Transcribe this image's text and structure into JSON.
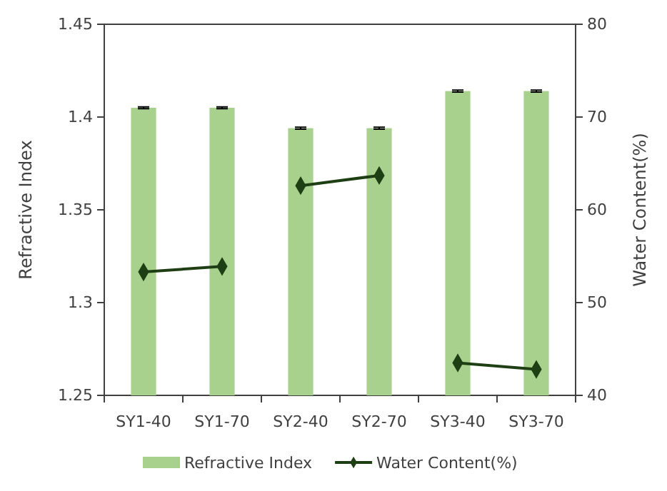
{
  "chart_data": {
    "type": "bar",
    "categories": [
      "SY1-40",
      "SY1-70",
      "SY2-40",
      "SY2-70",
      "SY3-40",
      "SY3-70"
    ],
    "ylabel": "Refractive Index",
    "y2label": "Water Content(%)",
    "ylim": [
      1.25,
      1.45
    ],
    "yticks": [
      1.25,
      1.3,
      1.35,
      1.4,
      1.45
    ],
    "y2lim": [
      40,
      80
    ],
    "y2ticks": [
      40,
      50,
      60,
      70,
      80
    ],
    "series": [
      {
        "name": "Refractive Index",
        "color": "#a9d18e",
        "values": [
          1.405,
          1.405,
          1.394,
          1.394,
          1.414,
          1.414
        ],
        "errors": [
          0.0005,
          0.0005,
          0.0005,
          0.0005,
          0.0005,
          0.0005
        ]
      },
      {
        "name": "Water Content(%)",
        "type": "line",
        "axis": "y2",
        "color": "#1e3f14",
        "values": [
          53.3,
          53.9,
          null,
          null,
          null,
          null
        ]
      },
      {
        "type": "line",
        "axis": "y2",
        "color": "#1e3f14",
        "values": [
          null,
          null,
          62.6,
          63.7,
          null,
          null
        ]
      },
      {
        "type": "line",
        "axis": "y2",
        "color": "#1e3f14",
        "values": [
          null,
          null,
          null,
          null,
          43.5,
          42.8
        ]
      }
    ],
    "marker": "diamond",
    "grid": false,
    "legend": "bottom"
  }
}
